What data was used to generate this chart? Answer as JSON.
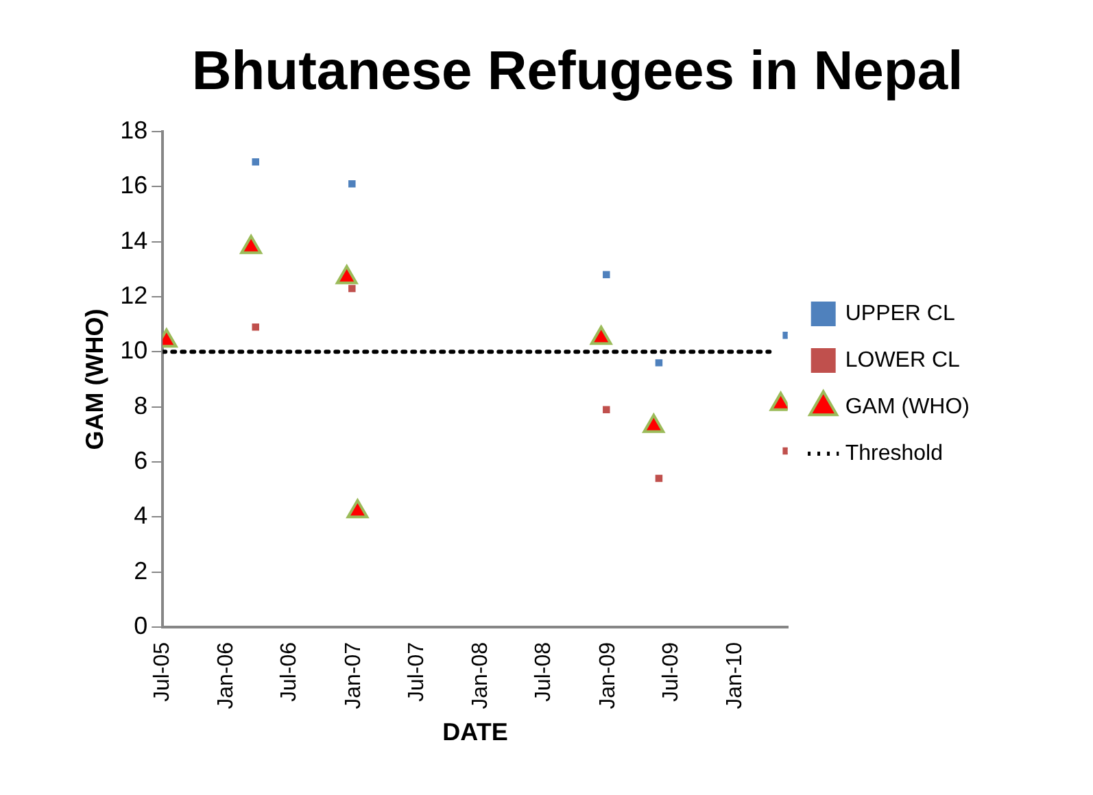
{
  "chart_data": {
    "type": "scatter",
    "title": "Bhutanese Refugees in Nepal",
    "xlabel": "DATE",
    "ylabel": "GAM (WHO)",
    "xlim": [
      "2005-07-01",
      "2010-06-01"
    ],
    "xticks": [
      {
        "value": "2005-07-01",
        "label": "Jul-05"
      },
      {
        "value": "2006-01-01",
        "label": "Jan-06"
      },
      {
        "value": "2006-07-01",
        "label": "Jul-06"
      },
      {
        "value": "2007-01-01",
        "label": "Jan-07"
      },
      {
        "value": "2007-07-01",
        "label": "Jul-07"
      },
      {
        "value": "2008-01-01",
        "label": "Jan-08"
      },
      {
        "value": "2008-07-01",
        "label": "Jul-08"
      },
      {
        "value": "2009-01-01",
        "label": "Jan-09"
      },
      {
        "value": "2009-07-01",
        "label": "Jul-09"
      },
      {
        "value": "2010-01-01",
        "label": "Jan-10"
      }
    ],
    "ylim": [
      0,
      18
    ],
    "yticks": [
      0,
      2,
      4,
      6,
      8,
      10,
      12,
      14,
      16,
      18
    ],
    "grid": false,
    "legend": "right",
    "series": [
      {
        "name": "UPPER CL",
        "color": "#4f81bd",
        "marker": "square",
        "x": [
          "2006-03-25",
          "2006-12-27",
          "2008-12-27",
          "2009-05-27",
          "2010-05-28"
        ],
        "values": [
          16.9,
          16.1,
          12.8,
          9.6,
          10.6
        ]
      },
      {
        "name": "LOWER CL",
        "color": "#c0504d",
        "marker": "square",
        "x": [
          "2006-03-25",
          "2006-12-27",
          "2008-12-27",
          "2009-05-27",
          "2010-05-28"
        ],
        "values": [
          10.9,
          12.3,
          7.9,
          5.4,
          6.4
        ]
      },
      {
        "name": "GAM (WHO)",
        "color": "#ff0000",
        "marker": "triangle",
        "x": [
          "2005-07-12",
          "2006-03-12",
          "2006-12-12",
          "2007-01-12",
          "2008-12-12",
          "2009-05-12",
          "2010-05-12"
        ],
        "values": [
          10.4,
          13.8,
          12.7,
          4.2,
          10.5,
          7.3,
          8.1
        ]
      },
      {
        "name": "Threshold",
        "type": "line",
        "color": "#000000",
        "marker": "none",
        "line_style": "dotted",
        "x": [
          "2005-07-01",
          "2010-04-10"
        ],
        "values": [
          10,
          10
        ]
      }
    ]
  }
}
